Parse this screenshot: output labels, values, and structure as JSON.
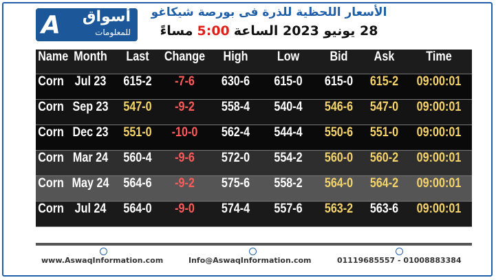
{
  "header": {
    "logo_name": "أسواق",
    "logo_sub": "للمعلومات",
    "title": "الأسعار اللحظية للذرة فى بورصة شيكاغو",
    "subtitle_parts": [
      {
        "text": "28 يونيو 2023 الساعة",
        "color": "#111111"
      },
      {
        "text": "5:00",
        "color": "#e0201b"
      },
      {
        "text": "مساءً",
        "color": "#111111"
      }
    ]
  },
  "table": {
    "columns": [
      "Name",
      "Month",
      "Last",
      "Change",
      "High",
      "Low",
      "Bid",
      "Ask",
      "Time"
    ],
    "rows": [
      [
        "Corn",
        "Jul 23",
        "615-2",
        "-7-6",
        "630-6",
        "615-0",
        "615-0",
        "615-2",
        "09:00:01"
      ],
      [
        "Corn",
        "Sep 23",
        "547-0",
        "-9-2",
        "558-4",
        "540-4",
        "546-6",
        "547-0",
        "09:00:01"
      ],
      [
        "Corn",
        "Dec 23",
        "551-0",
        "-10-0",
        "562-4",
        "544-4",
        "550-6",
        "551-0",
        "09:00:01"
      ],
      [
        "Corn",
        "Mar 24",
        "560-4",
        "-9-6",
        "572-0",
        "554-2",
        "560-0",
        "560-2",
        "09:00:01"
      ],
      [
        "Corn",
        "May 24",
        "564-6",
        "-9-2",
        "575-6",
        "558-2",
        "564-0",
        "564-2",
        "09:00:01"
      ],
      [
        "Corn",
        "Jul 24",
        "564-0",
        "-9-0",
        "574-4",
        "557-6",
        "563-2",
        "563-6",
        "09:00:01"
      ]
    ],
    "cell_colors": [
      [
        "#ffffff",
        "#ffffff",
        "#ffffff",
        "#ff5a5a",
        "#ffffff",
        "#ffffff",
        "#ffffff",
        "#f5d36b",
        "#f5d36b"
      ],
      [
        "#ffffff",
        "#ffffff",
        "#f5d36b",
        "#ff5a5a",
        "#ffffff",
        "#ffffff",
        "#f5d36b",
        "#f5d36b",
        "#f5d36b"
      ],
      [
        "#ffffff",
        "#ffffff",
        "#f5d36b",
        "#ff5a5a",
        "#ffffff",
        "#ffffff",
        "#f5d36b",
        "#f5d36b",
        "#f5d36b"
      ],
      [
        "#ffffff",
        "#ffffff",
        "#ffffff",
        "#ff5a5a",
        "#ffffff",
        "#ffffff",
        "#f5d36b",
        "#f5d36b",
        "#f5d36b"
      ],
      [
        "#ffffff",
        "#ffffff",
        "#ffffff",
        "#ff5a5a",
        "#ffffff",
        "#ffffff",
        "#f5d36b",
        "#f5d36b",
        "#f5d36b"
      ],
      [
        "#ffffff",
        "#ffffff",
        "#ffffff",
        "#ff5a5a",
        "#ffffff",
        "#ffffff",
        "#f5d36b",
        "#ffffff",
        "#f5d36b"
      ]
    ],
    "row_backgrounds": [
      "#0a0a0a",
      "#141414",
      "#0a0a0a",
      "#2e2e2e",
      "#555555",
      "#1a1a1a"
    ]
  },
  "footer": {
    "website": "www.AswaqInformation.com",
    "email": "Info@AswaqInformation.com",
    "phone": "01119685557 - 01008883384"
  }
}
